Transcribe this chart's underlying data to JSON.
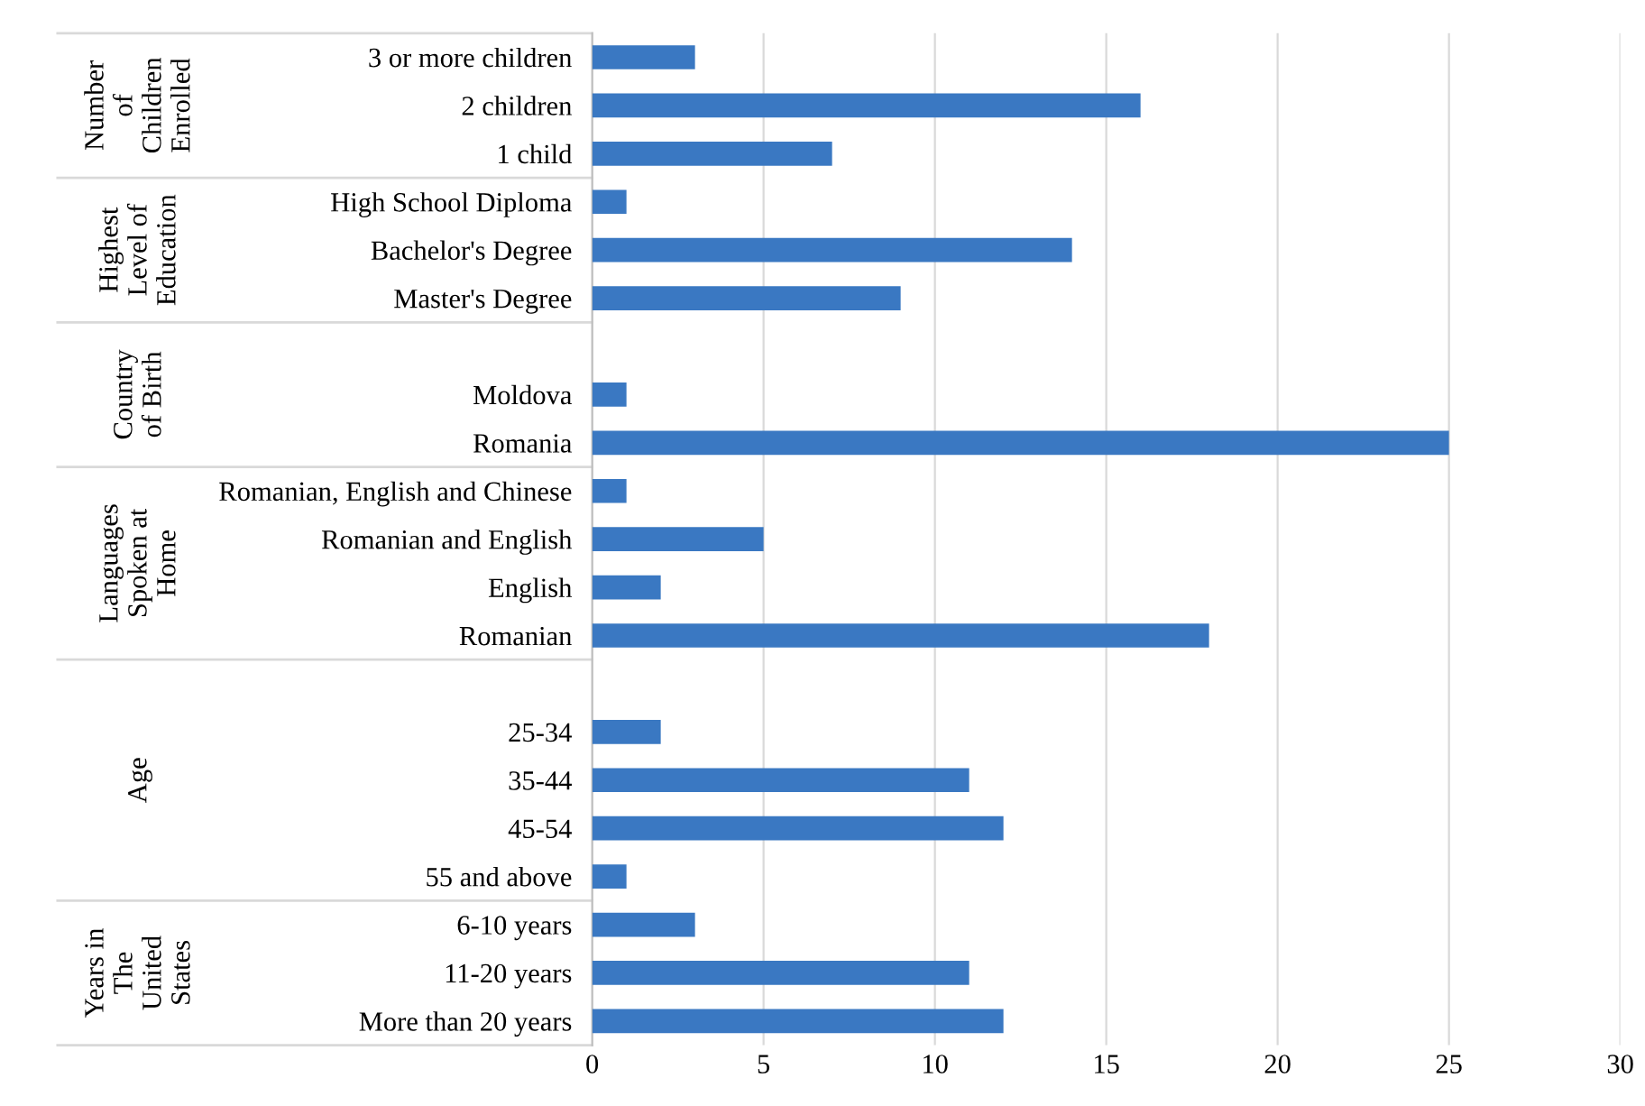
{
  "chart_data": {
    "type": "bar",
    "orientation": "horizontal",
    "categories": [
      "3 or more children",
      "2 children",
      "1 child",
      "High School Diploma",
      "Bachelor's Degree",
      "Master's Degree",
      null,
      "Moldova",
      "Romania",
      "Romanian, English and Chinese",
      "Romanian and English",
      "English",
      "Romanian",
      null,
      "25-34",
      "35-44",
      "45-54",
      "55 and above",
      "6-10 years",
      "11-20 years",
      "More than 20 years"
    ],
    "values": [
      3,
      16,
      7,
      1,
      14,
      9,
      null,
      1,
      25,
      1,
      5,
      2,
      18,
      null,
      2,
      11,
      12,
      1,
      3,
      11,
      12
    ],
    "color": "#3a78c2",
    "xlim": [
      0,
      30
    ],
    "xticks": [
      0,
      5,
      10,
      15,
      20,
      25,
      30
    ],
    "grid": "x",
    "annotations": [
      "Number\nof\nChildren\nEnrolled",
      "Highest\nLevel of\nEducation",
      "Country\nof Birth",
      "Languages\nSpoken at\nHome",
      "Age",
      "Years in\nThe\nUnited\nStates"
    ]
  }
}
